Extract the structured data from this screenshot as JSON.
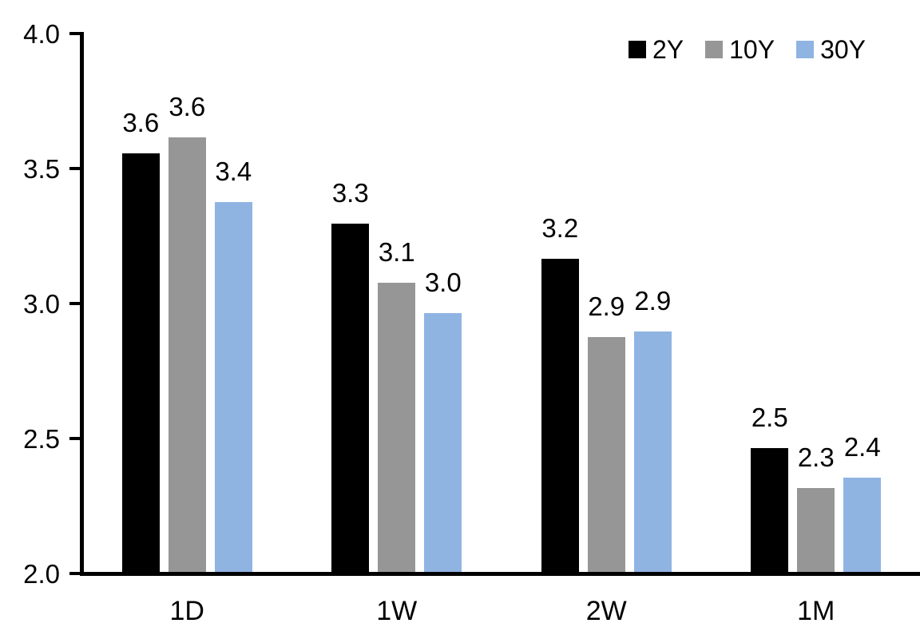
{
  "chart_data": {
    "type": "bar",
    "title": "",
    "xlabel": "",
    "ylabel": "",
    "categories": [
      "1D",
      "1W",
      "2W",
      "1M"
    ],
    "series": [
      {
        "name": "2Y",
        "color": "#000000",
        "values": [
          3.55,
          3.29,
          3.16,
          2.46
        ],
        "labels": [
          "3.6",
          "3.3",
          "3.2",
          "2.5"
        ]
      },
      {
        "name": "10Y",
        "color": "#969696",
        "values": [
          3.61,
          3.07,
          2.87,
          2.31
        ],
        "labels": [
          "3.6",
          "3.1",
          "2.9",
          "2.3"
        ]
      },
      {
        "name": "30Y",
        "color": "#8FB4E2",
        "values": [
          3.37,
          2.96,
          2.89,
          2.35
        ],
        "labels": [
          "3.4",
          "3.0",
          "2.9",
          "2.4"
        ]
      }
    ],
    "ylim": [
      2.0,
      4.0
    ],
    "yticks": [
      "2.0",
      "2.5",
      "3.0",
      "3.5",
      "4.0"
    ],
    "grid": false,
    "legend_position": "top-right",
    "data_labels_shown": true,
    "axis_color": "#000000",
    "text_color": "#000000"
  }
}
